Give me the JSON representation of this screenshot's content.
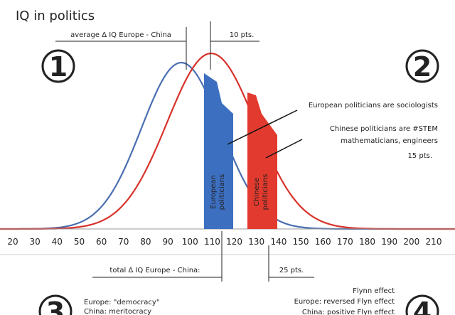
{
  "title": "IQ in politics",
  "markers": [
    "1",
    "2",
    "3",
    "4"
  ],
  "top_annotations": {
    "average": "average Δ IQ Europe - China",
    "average_pts": "10 pts."
  },
  "bars": {
    "europe": "European politicians",
    "china": "Chinese politicians"
  },
  "callouts": {
    "europe": "European politicians are sociologists",
    "china": [
      "Chinese politicians are  #STEM",
      "mathematicians, engineers"
    ],
    "china_pts": "15 pts."
  },
  "x_axis": {
    "ticks": [
      20,
      30,
      40,
      50,
      60,
      70,
      80,
      90,
      100,
      110,
      120,
      130,
      140,
      150,
      160,
      170,
      180,
      190,
      200,
      210
    ]
  },
  "bottom_annotations": {
    "total": "total Δ IQ Europe - China:",
    "total_pts": "25 pts."
  },
  "notes_left": [
    "Europe: \"democracy\"",
    "China: meritocracy"
  ],
  "notes_right": [
    "Flynn effect",
    "Europe: reversed Flyn effect",
    "China: positive Flyn effect"
  ]
}
